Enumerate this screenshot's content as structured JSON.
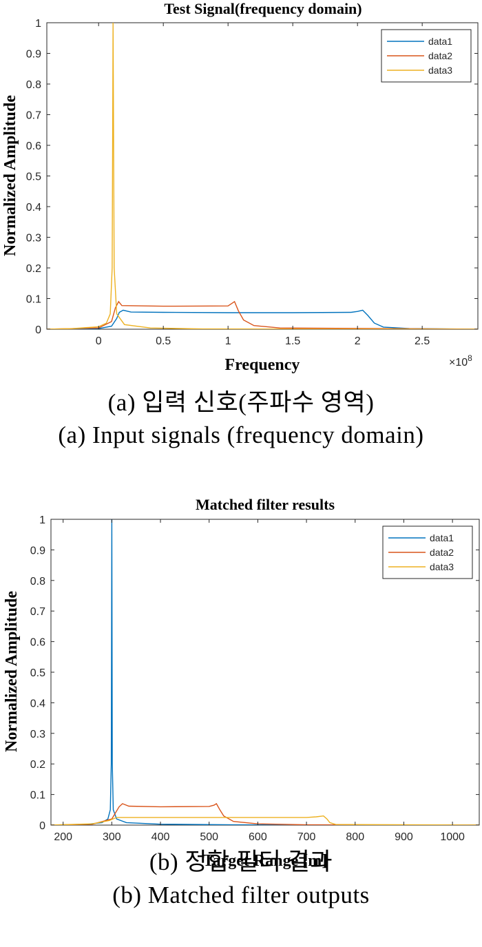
{
  "figures": [
    {
      "caption_ko": "(a)  입력  신호(주파수  영역)",
      "caption_en": "(a)  Input  signals  (frequency  domain)"
    },
    {
      "caption_ko": "(b)  정합  필터  결과",
      "caption_en": "(b)  Matched  filter  outputs"
    }
  ],
  "colors": {
    "data1": "#0072BD",
    "data2": "#D95319",
    "data3": "#EDB120"
  },
  "chart_data": [
    {
      "type": "line",
      "title": "Test Signal(frequency domain)",
      "xlabel": "Frequency",
      "ylabel": "Normalized Amplitude",
      "x_exponent_label": "×10",
      "x_exponent_power": "8",
      "xlim": [
        -0.4,
        2.93
      ],
      "ylim": [
        0,
        1
      ],
      "xticks": [
        0,
        0.5,
        1,
        1.5,
        2,
        2.5
      ],
      "xtick_labels": [
        "0",
        "0.5",
        "1",
        "1.5",
        "2",
        "2.5"
      ],
      "yticks": [
        0,
        0.1,
        0.2,
        0.3,
        0.4,
        0.5,
        0.6,
        0.7,
        0.8,
        0.9,
        1
      ],
      "ytick_labels": [
        "0",
        "0.1",
        "0.2",
        "0.3",
        "0.4",
        "0.5",
        "0.6",
        "0.7",
        "0.8",
        "0.9",
        "1"
      ],
      "grid": false,
      "legend_position": "top-right",
      "series": [
        {
          "name": "data1",
          "color": "#0072BD",
          "points": [
            [
              -0.4,
              0.0
            ],
            [
              0.0,
              0.002
            ],
            [
              0.1,
              0.01
            ],
            [
              0.14,
              0.035
            ],
            [
              0.16,
              0.055
            ],
            [
              0.19,
              0.062
            ],
            [
              0.25,
              0.056
            ],
            [
              0.5,
              0.055
            ],
            [
              1.0,
              0.054
            ],
            [
              1.5,
              0.054
            ],
            [
              1.95,
              0.055
            ],
            [
              2.0,
              0.058
            ],
            [
              2.04,
              0.062
            ],
            [
              2.08,
              0.045
            ],
            [
              2.13,
              0.02
            ],
            [
              2.2,
              0.007
            ],
            [
              2.4,
              0.002
            ],
            [
              2.93,
              0.0
            ]
          ]
        },
        {
          "name": "data2",
          "color": "#D95319",
          "points": [
            [
              -0.4,
              0.0
            ],
            [
              0.0,
              0.004
            ],
            [
              0.1,
              0.025
            ],
            [
              0.13,
              0.07
            ],
            [
              0.155,
              0.09
            ],
            [
              0.18,
              0.077
            ],
            [
              0.5,
              0.075
            ],
            [
              1.0,
              0.076
            ],
            [
              1.05,
              0.09
            ],
            [
              1.08,
              0.06
            ],
            [
              1.12,
              0.03
            ],
            [
              1.2,
              0.012
            ],
            [
              1.4,
              0.004
            ],
            [
              2.93,
              0.0
            ]
          ]
        },
        {
          "name": "data3",
          "color": "#EDB120",
          "points": [
            [
              -0.4,
              0.0
            ],
            [
              -0.2,
              0.002
            ],
            [
              0.0,
              0.008
            ],
            [
              0.06,
              0.02
            ],
            [
              0.09,
              0.05
            ],
            [
              0.105,
              0.2
            ],
            [
              0.112,
              1.0
            ],
            [
              0.12,
              0.2
            ],
            [
              0.14,
              0.05
            ],
            [
              0.2,
              0.015
            ],
            [
              0.4,
              0.004
            ],
            [
              0.8,
              0.001
            ],
            [
              2.93,
              0.0
            ]
          ]
        }
      ]
    },
    {
      "type": "line",
      "title": "Matched filter results",
      "xlabel": "Target Range [m]",
      "ylabel": "Normalized Amplitude",
      "xlim": [
        175,
        1055
      ],
      "ylim": [
        0,
        1
      ],
      "xticks": [
        200,
        300,
        400,
        500,
        600,
        700,
        800,
        900,
        1000
      ],
      "xtick_labels": [
        "200",
        "300",
        "400",
        "500",
        "600",
        "700",
        "800",
        "900",
        "1000"
      ],
      "yticks": [
        0,
        0.1,
        0.2,
        0.3,
        0.4,
        0.5,
        0.6,
        0.7,
        0.8,
        0.9,
        1
      ],
      "ytick_labels": [
        "0",
        "0.1",
        "0.2",
        "0.3",
        "0.4",
        "0.5",
        "0.6",
        "0.7",
        "0.8",
        "0.9",
        "1"
      ],
      "grid": false,
      "legend_position": "top-right",
      "series": [
        {
          "name": "data1",
          "color": "#0072BD",
          "points": [
            [
              175,
              0.0
            ],
            [
              250,
              0.003
            ],
            [
              280,
              0.008
            ],
            [
              292,
              0.02
            ],
            [
              297,
              0.05
            ],
            [
              299,
              0.2
            ],
            [
              300,
              1.0
            ],
            [
              301,
              0.2
            ],
            [
              303,
              0.05
            ],
            [
              310,
              0.02
            ],
            [
              330,
              0.008
            ],
            [
              400,
              0.003
            ],
            [
              550,
              0.001
            ],
            [
              1055,
              0.0
            ]
          ]
        },
        {
          "name": "data2",
          "color": "#D95319",
          "points": [
            [
              175,
              0.0
            ],
            [
              260,
              0.003
            ],
            [
              300,
              0.02
            ],
            [
              315,
              0.06
            ],
            [
              322,
              0.07
            ],
            [
              335,
              0.062
            ],
            [
              400,
              0.06
            ],
            [
              500,
              0.061
            ],
            [
              510,
              0.065
            ],
            [
              515,
              0.07
            ],
            [
              522,
              0.05
            ],
            [
              530,
              0.03
            ],
            [
              550,
              0.012
            ],
            [
              600,
              0.004
            ],
            [
              700,
              0.001
            ],
            [
              1055,
              0.0
            ]
          ]
        },
        {
          "name": "data3",
          "color": "#EDB120",
          "points": [
            [
              175,
              0.0
            ],
            [
              260,
              0.004
            ],
            [
              295,
              0.015
            ],
            [
              310,
              0.025
            ],
            [
              400,
              0.025
            ],
            [
              500,
              0.025
            ],
            [
              600,
              0.025
            ],
            [
              700,
              0.025
            ],
            [
              720,
              0.027
            ],
            [
              735,
              0.03
            ],
            [
              742,
              0.02
            ],
            [
              748,
              0.008
            ],
            [
              760,
              0.002
            ],
            [
              1055,
              0.0
            ]
          ]
        }
      ]
    }
  ]
}
